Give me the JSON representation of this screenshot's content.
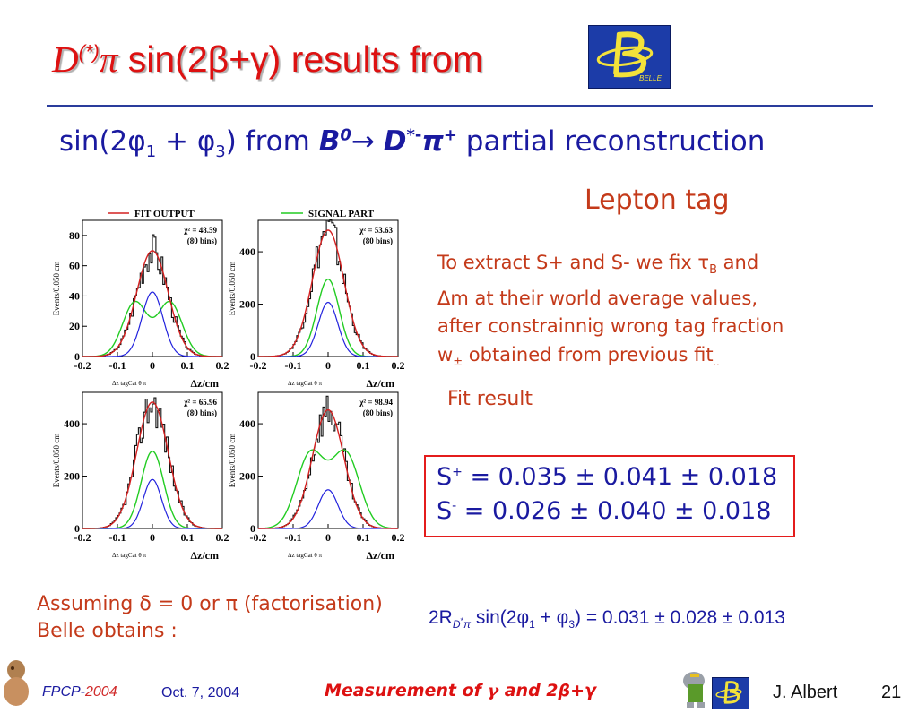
{
  "title": {
    "d": "D",
    "star": "(*)",
    "pi": "π",
    "rest": " sin(2β+γ) results from"
  },
  "logo_text": "BELLE",
  "subtitle": {
    "a": "sin(2φ",
    "s1": "1",
    "b": " + φ",
    "s3": "3",
    "c": ") from ",
    "b0": "B",
    "b0sup": "0",
    "arrow": "→ ",
    "d": "D",
    "dsup": "*-",
    "pi": "π",
    "pisup": "+",
    "tail": " partial reconstruction"
  },
  "lepton_tag": "Lepton tag",
  "description": {
    "l1a": "To extract S+ and S- we fix τ",
    "l1sub": "B",
    "l1b": " and",
    "l2": "Δm at their world average values,",
    "l3": "after constrainnig wrong tag fraction",
    "l4a": "w",
    "l4sub": "±",
    "l4b": " obtained from previous fit",
    "l4c": ".."
  },
  "fit_result_label": "Fit result",
  "results": {
    "splus": {
      "sym": "S",
      "sup": "+",
      "val": " = 0.035 ± 0.041 ± 0.018"
    },
    "sminus": {
      "sym": "S",
      "sup": "-",
      "val": " = 0.026 ± 0.040 ± 0.018"
    }
  },
  "assumption": {
    "l1": "Assuming δ = 0 or π (factorisation)",
    "l2": " Belle obtains :"
  },
  "formula": {
    "pre": "2R",
    "sub": "D",
    "subsup": "*",
    "subpi": "π",
    "mid": " sin(2φ",
    "s1": "1",
    "plus": " + φ",
    "s3": "3",
    "post": ") = 0.031 ± 0.028 ± 0.013"
  },
  "plots": {
    "legend_fit": "FIT OUTPUT",
    "legend_signal": "SIGNAL PART",
    "ylabel_top": "Events/0.050 cm",
    "ylabel_bottom": "Events/0.050 cm",
    "xlabel": "Δz/cm",
    "xsmall": "Δz tagCat θ π",
    "xticks": [
      "-0.2",
      "-0.1",
      "0",
      "0.1",
      "0.2"
    ],
    "panels": [
      {
        "chi2": "χ² = 48.59",
        "bins": "(80 bins)",
        "yticks": [
          "0",
          "20",
          "40",
          "60",
          "80"
        ]
      },
      {
        "chi2": "χ² = 53.63",
        "bins": "(80 bins)",
        "yticks": [
          "0",
          "200",
          "400"
        ]
      },
      {
        "chi2": "χ² = 65.96",
        "bins": "(80 bins)",
        "yticks": [
          "0",
          "200",
          "400"
        ]
      },
      {
        "chi2": "χ² = 98.94",
        "bins": "(80 bins)",
        "yticks": [
          "0",
          "200",
          "400"
        ]
      }
    ],
    "colors": {
      "fit": "#d42020",
      "signal": "#22cc22",
      "blue": "#2222dd"
    }
  },
  "footer": {
    "conf": "FPCP-",
    "year": "2004",
    "date": "Oct. 7, 2004",
    "talk_a": "Measurement of ",
    "gamma": "γ",
    "talk_b": " and ",
    "talk_c": "2β+γ",
    "author": "J. Albert",
    "page": "21"
  }
}
